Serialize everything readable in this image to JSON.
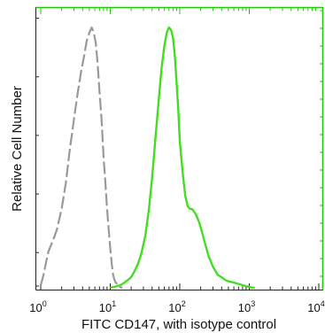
{
  "chart_data": {
    "type": "line",
    "title": "",
    "xlabel": "FITC  CD147, with isotype control",
    "ylabel": "Relative Cell Number",
    "x_scale": "log",
    "xlim": [
      1,
      10000
    ],
    "ylim": [
      0,
      100
    ],
    "x_ticks": [
      {
        "value": 1,
        "base": "10",
        "exp": "0"
      },
      {
        "value": 10,
        "base": "10",
        "exp": "1"
      },
      {
        "value": 100,
        "base": "10",
        "exp": "2"
      },
      {
        "value": 1000,
        "base": "10",
        "exp": "3"
      },
      {
        "value": 10000,
        "base": "10",
        "exp": "4"
      }
    ],
    "grid": false,
    "legend": "none",
    "series": [
      {
        "color": "#999999",
        "dash": "dashed",
        "x": [
          1.0,
          1.1,
          1.2,
          1.3,
          1.5,
          1.7,
          2.0,
          2.3,
          2.6,
          3.0,
          3.4,
          3.8,
          4.2,
          4.6,
          5.0,
          5.4,
          5.8,
          6.2,
          6.6,
          7.0,
          7.5,
          8.0,
          8.5,
          9.0,
          9.5,
          10.0,
          10.5,
          11.0,
          11.5,
          12.0,
          12.5,
          13.0,
          13.5,
          14.0,
          15.0
        ],
        "y": [
          1,
          5,
          10,
          14,
          18,
          22,
          30,
          40,
          52,
          64,
          74,
          82,
          88,
          94,
          97,
          99,
          97,
          93,
          85,
          75,
          64,
          50,
          40,
          30,
          22,
          15,
          9,
          5,
          3,
          2,
          1.5,
          1,
          0.5,
          0.2,
          0
        ]
      },
      {
        "color": "#44dd22",
        "dash": "solid",
        "x": [
          10,
          12,
          14,
          16,
          18,
          20,
          22,
          25,
          28,
          32,
          36,
          40,
          45,
          50,
          55,
          60,
          65,
          70,
          75,
          80,
          85,
          90,
          95,
          100,
          110,
          120,
          130,
          140,
          150,
          170,
          190,
          210,
          230,
          260,
          300,
          350,
          400,
          450,
          500,
          600,
          700,
          800,
          900,
          1000,
          1100,
          1200
        ],
        "y": [
          0,
          0.5,
          1,
          2,
          3,
          4,
          6,
          9,
          13,
          20,
          30,
          42,
          58,
          72,
          84,
          92,
          97,
          99,
          98,
          95,
          88,
          78,
          68,
          56,
          44,
          35,
          31,
          30,
          30,
          28,
          25,
          21,
          17,
          12,
          8,
          5,
          4,
          3,
          2.5,
          2,
          1.5,
          1,
          0.6,
          0.3,
          0.1,
          0
        ]
      }
    ]
  }
}
